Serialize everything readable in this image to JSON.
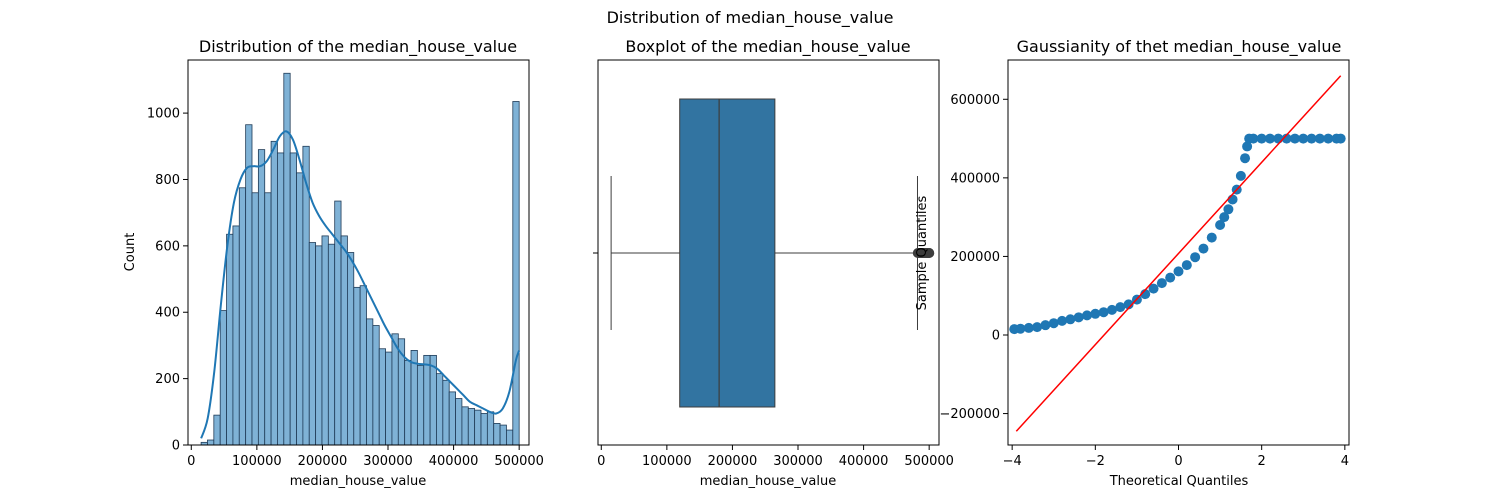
{
  "figure": {
    "suptitle": "Distribution of median_house_value"
  },
  "colors": {
    "hist_fill": "#7fb2d6",
    "hist_edge": "#1f3b57",
    "kde": "#1f77b4",
    "box": "#3274a1",
    "qq_points": "#1f77b4",
    "qq_line": "#ff0000"
  },
  "chart_data": [
    {
      "type": "bar",
      "subtype": "histogram-with-kde",
      "title": "Distribution of the median_house_value",
      "xlabel": "median_house_value",
      "ylabel": "Count",
      "xlim": [
        -5000,
        515000
      ],
      "ylim": [
        0,
        1160
      ],
      "xticks": [
        0,
        100000,
        200000,
        300000,
        400000,
        500000
      ],
      "xtick_labels": [
        "0",
        "100000",
        "200000",
        "300000",
        "400000",
        "500000"
      ],
      "yticks": [
        0,
        200,
        400,
        600,
        800,
        1000
      ],
      "ytick_labels": [
        "0",
        "200",
        "400",
        "600",
        "800",
        "1000"
      ],
      "bin_edges": [
        14999,
        24699,
        34399,
        44099,
        53799,
        63499,
        73199,
        82899,
        92599,
        102299,
        111999,
        121699,
        131399,
        141099,
        150799,
        160499,
        170199,
        179899,
        189599,
        199299,
        208999,
        218699,
        228399,
        238099,
        247799,
        257499,
        267199,
        276899,
        286599,
        296299,
        305999,
        315699,
        325399,
        335099,
        344799,
        354499,
        364199,
        373899,
        383599,
        393299,
        402999,
        412699,
        422399,
        432099,
        441799,
        451499,
        461199,
        470899,
        480599,
        490299,
        500001
      ],
      "counts": [
        8,
        15,
        90,
        405,
        635,
        660,
        775,
        965,
        760,
        890,
        760,
        915,
        880,
        1120,
        880,
        820,
        900,
        610,
        600,
        630,
        605,
        735,
        630,
        580,
        475,
        480,
        380,
        360,
        290,
        280,
        335,
        320,
        255,
        285,
        240,
        270,
        270,
        215,
        195,
        160,
        140,
        115,
        110,
        105,
        95,
        100,
        65,
        60,
        45,
        1035
      ],
      "kde": {
        "x": [
          15000,
          25000,
          35000,
          45000,
          55000,
          65000,
          75000,
          85000,
          95000,
          105000,
          115000,
          125000,
          135000,
          145000,
          155000,
          165000,
          175000,
          185000,
          195000,
          205000,
          215000,
          225000,
          235000,
          245000,
          255000,
          265000,
          275000,
          285000,
          295000,
          305000,
          315000,
          325000,
          335000,
          345000,
          355000,
          365000,
          375000,
          385000,
          395000,
          405000,
          415000,
          425000,
          435000,
          445000,
          455000,
          465000,
          475000,
          485000,
          495000,
          500000
        ],
        "y": [
          20,
          80,
          220,
          420,
          600,
          730,
          800,
          835,
          840,
          840,
          855,
          890,
          930,
          945,
          920,
          860,
          790,
          730,
          690,
          660,
          635,
          610,
          585,
          555,
          520,
          480,
          440,
          400,
          360,
          325,
          290,
          265,
          250,
          245,
          243,
          240,
          230,
          210,
          190,
          170,
          150,
          130,
          120,
          110,
          100,
          95,
          110,
          160,
          255,
          285
        ]
      }
    },
    {
      "type": "box",
      "title": "Boxplot of the median_house_value",
      "xlabel": "median_house_value",
      "xlim": [
        -5000,
        515000
      ],
      "xticks": [
        0,
        100000,
        200000,
        300000,
        400000,
        500000
      ],
      "xtick_labels": [
        "0",
        "100000",
        "200000",
        "300000",
        "400000",
        "500000"
      ],
      "whisker_low": 14999,
      "q1": 119600,
      "median": 179700,
      "q3": 264725,
      "whisker_high": 482200,
      "outliers": [
        482700,
        484000,
        485500,
        487500,
        489000,
        490000,
        491500,
        493000,
        494500,
        496000,
        497500,
        498500,
        500000,
        500001
      ]
    },
    {
      "type": "scatter",
      "subtype": "qq-plot",
      "title": "Gaussianity of thet  median_house_value",
      "xlabel": "Theoretical Quantiles",
      "ylabel": "Sample Quantiles",
      "xlim": [
        -4.1,
        4.1
      ],
      "ylim": [
        -280000,
        700000
      ],
      "xticks": [
        -4,
        -2,
        0,
        2,
        4
      ],
      "xtick_labels": [
        "−4",
        "−2",
        "0",
        "2",
        "4"
      ],
      "yticks": [
        -200000,
        0,
        200000,
        400000,
        600000
      ],
      "ytick_labels": [
        "−200000",
        "0",
        "200000",
        "400000",
        "600000"
      ],
      "points": [
        [
          -3.95,
          15000
        ],
        [
          -3.8,
          16000
        ],
        [
          -3.6,
          18000
        ],
        [
          -3.4,
          20000
        ],
        [
          -3.2,
          25000
        ],
        [
          -3.0,
          30000
        ],
        [
          -2.8,
          36000
        ],
        [
          -2.6,
          40000
        ],
        [
          -2.4,
          45000
        ],
        [
          -2.2,
          50000
        ],
        [
          -2.0,
          54000
        ],
        [
          -1.8,
          58000
        ],
        [
          -1.6,
          64000
        ],
        [
          -1.4,
          71000
        ],
        [
          -1.2,
          78000
        ],
        [
          -1.0,
          90000
        ],
        [
          -0.8,
          104000
        ],
        [
          -0.6,
          118000
        ],
        [
          -0.4,
          132000
        ],
        [
          -0.2,
          146000
        ],
        [
          0.0,
          162000
        ],
        [
          0.2,
          178000
        ],
        [
          0.4,
          198000
        ],
        [
          0.6,
          220000
        ],
        [
          0.8,
          248000
        ],
        [
          1.0,
          280000
        ],
        [
          1.1,
          300000
        ],
        [
          1.2,
          320000
        ],
        [
          1.3,
          345000
        ],
        [
          1.4,
          370000
        ],
        [
          1.5,
          405000
        ],
        [
          1.6,
          450000
        ],
        [
          1.65,
          480000
        ],
        [
          1.7,
          500000
        ],
        [
          1.8,
          500000
        ],
        [
          2.0,
          500000
        ],
        [
          2.2,
          500000
        ],
        [
          2.4,
          500000
        ],
        [
          2.6,
          500000
        ],
        [
          2.8,
          500000
        ],
        [
          3.0,
          500000
        ],
        [
          3.2,
          500000
        ],
        [
          3.4,
          500000
        ],
        [
          3.6,
          500000
        ],
        [
          3.8,
          500000
        ],
        [
          3.9,
          500000
        ]
      ],
      "reference_line": [
        [
          -3.9,
          -245000
        ],
        [
          3.9,
          660000
        ]
      ]
    }
  ]
}
